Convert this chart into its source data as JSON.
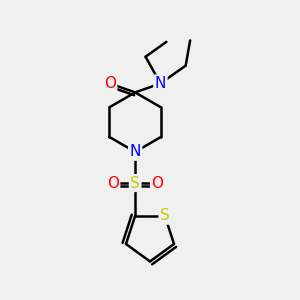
{
  "bg_color": "#f0f0f0",
  "bond_color": "#000000",
  "bond_width": 1.8,
  "atom_colors": {
    "C": "#000000",
    "N": "#0000ff",
    "O": "#ff0000",
    "S": "#cccc00"
  },
  "font_size": 10,
  "fig_size": [
    3.0,
    3.0
  ],
  "dpi": 100
}
